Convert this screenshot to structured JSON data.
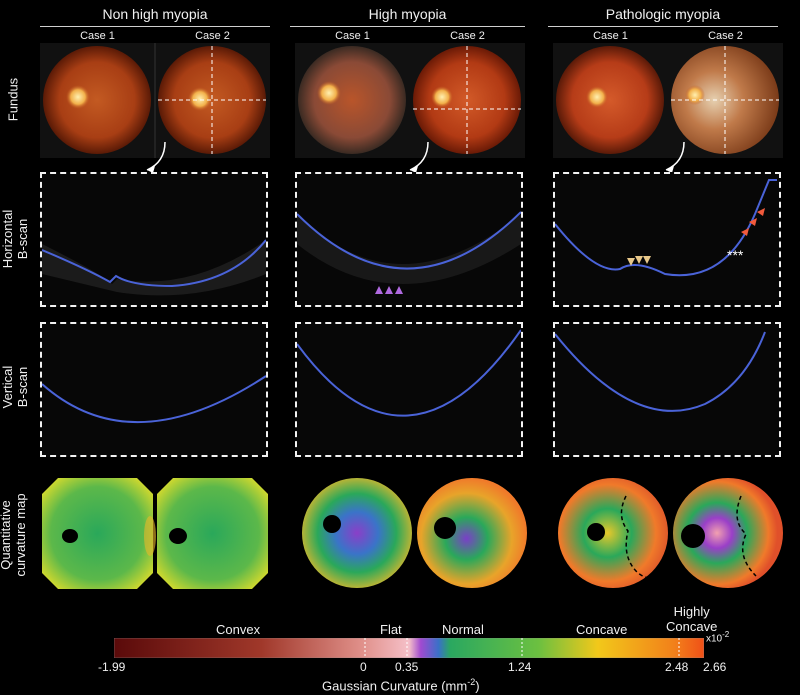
{
  "columns": [
    {
      "title": "Non high myopia",
      "cases": [
        "Case 1",
        "Case 2"
      ]
    },
    {
      "title": "High myopia",
      "cases": [
        "Case 1",
        "Case 2"
      ]
    },
    {
      "title": "Pathologic myopia",
      "cases": [
        "Case 1",
        "Case 2"
      ]
    }
  ],
  "rows": {
    "fundus": "Fundus",
    "horizontal_1": "Horizontal",
    "horizontal_2": "B-scan",
    "vertical_1": "Vertical",
    "vertical_2": "B-scan",
    "map_1": "Quantitative",
    "map_2": "curvature map"
  },
  "annotations": {
    "asterisks": "***"
  },
  "colorbar": {
    "categories": {
      "convex": "Convex",
      "flat": "Flat",
      "normal": "Normal",
      "concave": "Concave",
      "highly_1": "Highly",
      "highly_2": "Concave"
    },
    "ticks": [
      "-1.99",
      "0",
      "0.35",
      "1.24",
      "2.48",
      "2.66"
    ],
    "exponent": "x10",
    "exponent_power": "-2",
    "axis_title": "Gaussian Curvature (mm",
    "axis_unit_power": "-2",
    "axis_close": ")"
  },
  "colors": {
    "fundus_orange": "#c8501c",
    "scan_line": "#4a63d8",
    "convex": "#6e0b0b",
    "flat": "#9a3fc4",
    "normal": "#22a55a",
    "concave": "#f2c419",
    "highly_concave": "#f25a1c"
  }
}
